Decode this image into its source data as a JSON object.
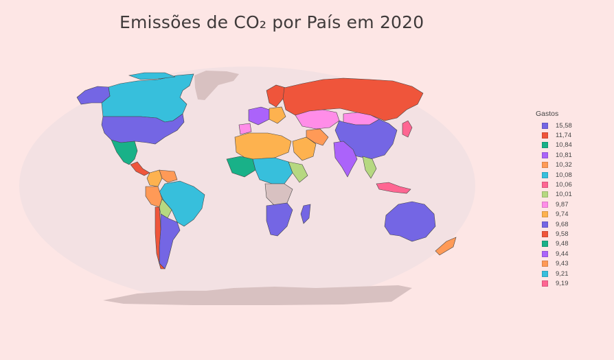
{
  "title": "Emissões de CO₂ por País em 2020",
  "colors": {
    "background": "#fde6e5",
    "ocean": "#f3e1e3",
    "land_nodata": "#d8c1c1",
    "border": "#444444"
  },
  "legend": {
    "title": "Gastos",
    "items": [
      {
        "label": "15,58",
        "color": "#7466e4"
      },
      {
        "label": "11,74",
        "color": "#ef553b"
      },
      {
        "label": "10,84",
        "color": "#19b188"
      },
      {
        "label": "10,81",
        "color": "#ab63fa"
      },
      {
        "label": "10,32",
        "color": "#ff9a57"
      },
      {
        "label": "10,08",
        "color": "#37bfdc"
      },
      {
        "label": "10,06",
        "color": "#fe6692"
      },
      {
        "label": "10,01",
        "color": "#b6d881"
      },
      {
        "label": "9,87",
        "color": "#ff8de8"
      },
      {
        "label": "9,74",
        "color": "#fdb24f"
      },
      {
        "label": "9,68",
        "color": "#7466e4"
      },
      {
        "label": "9,58",
        "color": "#ef553b"
      },
      {
        "label": "9,48",
        "color": "#19b188"
      },
      {
        "label": "9,44",
        "color": "#ab63fa"
      },
      {
        "label": "9,43",
        "color": "#ff9a57"
      },
      {
        "label": "9,21",
        "color": "#37bfdc"
      },
      {
        "label": "9,19",
        "color": "#fe6692"
      }
    ]
  },
  "map_data": {
    "projection": "natural-earth",
    "regions": [
      {
        "name": "Canada",
        "color": "#37bfdc"
      },
      {
        "name": "Alaska",
        "color": "#7466e4"
      },
      {
        "name": "United States",
        "color": "#7466e4"
      },
      {
        "name": "Mexico",
        "color": "#19b188"
      },
      {
        "name": "Greenland",
        "color": "#d8c1c1"
      },
      {
        "name": "Brazil",
        "color": "#37bfdc"
      },
      {
        "name": "Russia",
        "color": "#ef553b"
      },
      {
        "name": "China",
        "color": "#7466e4"
      },
      {
        "name": "Mongolia",
        "color": "#ff8de8"
      },
      {
        "name": "Kazakhstan",
        "color": "#ff8de8"
      },
      {
        "name": "India",
        "color": "#ab63fa"
      },
      {
        "name": "Australia",
        "color": "#7466e4"
      },
      {
        "name": "Antarctica",
        "color": "#d8c1c1"
      }
    ]
  }
}
